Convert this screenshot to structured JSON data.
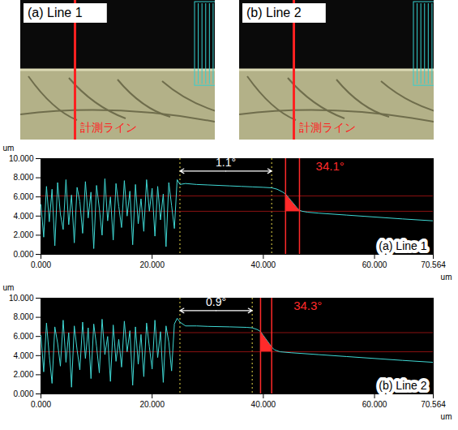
{
  "photos": [
    {
      "label": "(a) Line 1",
      "line_label": "計測ライン"
    },
    {
      "label": "(b) Line 2",
      "line_label": "計測ライン"
    }
  ],
  "chart_data": [
    {
      "type": "line",
      "title": "(a) Line 1",
      "ylabel": "um",
      "xlabel": "um",
      "color": "#3fd8d4",
      "x": [
        0,
        0.5,
        1,
        1.5,
        2,
        2.5,
        3,
        3.5,
        4,
        4.5,
        5,
        5.5,
        6,
        6.5,
        7,
        7.5,
        8,
        8.5,
        9,
        9.5,
        10,
        10.5,
        11,
        11.5,
        12,
        12.5,
        13,
        13.5,
        14,
        14.5,
        15,
        15.5,
        16,
        16.5,
        17,
        17.5,
        18,
        18.5,
        19,
        19.5,
        20,
        20.5,
        21,
        21.5,
        22,
        22.5,
        23,
        23.5,
        24,
        24.5,
        25,
        26,
        28,
        30,
        32,
        34,
        36,
        38,
        40,
        41.5,
        42.5,
        43.5,
        44,
        45,
        46,
        46.5,
        47,
        48,
        50,
        55,
        60,
        65,
        70.564
      ],
      "values": [
        5.2,
        1.8,
        7.1,
        3.4,
        6.8,
        0.9,
        7.5,
        4.2,
        2.6,
        7.8,
        3.1,
        6.2,
        1.2,
        7.0,
        5.5,
        2.2,
        7.6,
        3.8,
        6.5,
        0.6,
        7.2,
        4.8,
        2.0,
        7.9,
        3.5,
        6.0,
        1.5,
        7.4,
        5.0,
        2.8,
        7.7,
        4.0,
        6.6,
        1.0,
        7.3,
        3.2,
        5.8,
        2.4,
        7.8,
        4.5,
        6.9,
        1.9,
        7.1,
        3.6,
        6.3,
        0.8,
        7.5,
        5.1,
        2.7,
        7.8,
        7.3,
        7.4,
        7.3,
        7.25,
        7.2,
        7.15,
        7.1,
        7.05,
        7.0,
        6.95,
        6.8,
        6.5,
        6.3,
        5.6,
        4.9,
        4.6,
        4.5,
        4.4,
        4.3,
        4.1,
        3.9,
        3.7,
        3.5
      ],
      "xlim": [
        0,
        70.564
      ],
      "xticks": [
        {
          "value": 0,
          "label": "0.000"
        },
        {
          "value": 20,
          "label": "20.000"
        },
        {
          "value": 40,
          "label": "40.000"
        },
        {
          "value": 60,
          "label": "60.000"
        },
        {
          "value": 70.564,
          "label": "70.564"
        }
      ],
      "ylim": [
        0,
        10
      ],
      "yticks": [
        {
          "value": 0,
          "label": "0.000"
        },
        {
          "value": 2,
          "label": "2.000"
        },
        {
          "value": 4,
          "label": "4.000"
        },
        {
          "value": 6,
          "label": "6.000"
        },
        {
          "value": 8,
          "label": "8.000"
        },
        {
          "value": 10,
          "label": "10.000"
        }
      ],
      "grid": false,
      "annotations": [
        {
          "type": "bracket",
          "x": [
            25,
            41.5
          ],
          "y": 8.7,
          "text": "1.1°",
          "color": "#e6d84a"
        },
        {
          "type": "band",
          "x": [
            44,
            46.5
          ],
          "y": [
            4.5,
            6.1
          ],
          "text": "34.1°",
          "text_x": 52,
          "text_y": 9.2,
          "color": "#ff2a2a"
        }
      ]
    },
    {
      "type": "line",
      "title": "(b) Line 2",
      "ylabel": "um",
      "xlabel": "um",
      "color": "#3fd8d4",
      "x": [
        0,
        0.5,
        1,
        1.5,
        2,
        2.5,
        3,
        3.5,
        4,
        4.5,
        5,
        5.5,
        6,
        6.5,
        7,
        7.5,
        8,
        8.5,
        9,
        9.5,
        10,
        10.5,
        11,
        11.5,
        12,
        12.5,
        13,
        13.5,
        14,
        14.5,
        15,
        15.5,
        16,
        16.5,
        17,
        17.5,
        18,
        18.5,
        19,
        19.5,
        20,
        20.5,
        21,
        21.5,
        22,
        22.5,
        23,
        23.5,
        24,
        24.5,
        25,
        26,
        28,
        30,
        34,
        37,
        38,
        39,
        39.5,
        40,
        41,
        41.5,
        42,
        43,
        45,
        50,
        55,
        60,
        65,
        70.564
      ],
      "values": [
        6.1,
        2.3,
        7.4,
        4.0,
        1.1,
        7.0,
        5.3,
        2.9,
        7.7,
        3.3,
        6.4,
        0.7,
        7.1,
        4.6,
        2.5,
        7.5,
        3.7,
        6.9,
        1.6,
        7.3,
        5.0,
        2.2,
        7.8,
        4.1,
        6.0,
        1.3,
        7.2,
        3.4,
        5.7,
        2.8,
        7.6,
        4.4,
        6.6,
        0.9,
        7.0,
        3.1,
        6.2,
        1.8,
        7.4,
        4.9,
        2.6,
        7.7,
        3.8,
        6.5,
        1.2,
        7.1,
        5.4,
        2.4,
        7.3,
        7.9,
        7.5,
        7.1,
        7.1,
        7.05,
        7.0,
        6.95,
        6.9,
        6.7,
        6.5,
        6.1,
        5.3,
        4.9,
        4.6,
        4.4,
        4.3,
        4.1,
        3.9,
        3.7,
        3.5,
        3.3
      ],
      "xlim": [
        0,
        70.564
      ],
      "xticks": [
        {
          "value": 0,
          "label": "0.000"
        },
        {
          "value": 20,
          "label": "20.000"
        },
        {
          "value": 40,
          "label": "40.000"
        },
        {
          "value": 60,
          "label": "60.000"
        },
        {
          "value": 70.564,
          "label": "70.564"
        }
      ],
      "ylim": [
        0,
        10
      ],
      "yticks": [
        {
          "value": 0,
          "label": "0.000"
        },
        {
          "value": 2,
          "label": "2.000"
        },
        {
          "value": 4,
          "label": "4.000"
        },
        {
          "value": 6,
          "label": "6.000"
        },
        {
          "value": 8,
          "label": "8.000"
        },
        {
          "value": 10,
          "label": "10.000"
        }
      ],
      "grid": false,
      "annotations": [
        {
          "type": "bracket",
          "x": [
            25,
            38
          ],
          "y": 8.7,
          "text": "0.9°",
          "color": "#e6d84a"
        },
        {
          "type": "band",
          "x": [
            39.5,
            41.5
          ],
          "y": [
            4.4,
            6.4
          ],
          "text": "34.3°",
          "text_x": 48,
          "text_y": 9.2,
          "color": "#ff2a2a"
        }
      ]
    }
  ]
}
